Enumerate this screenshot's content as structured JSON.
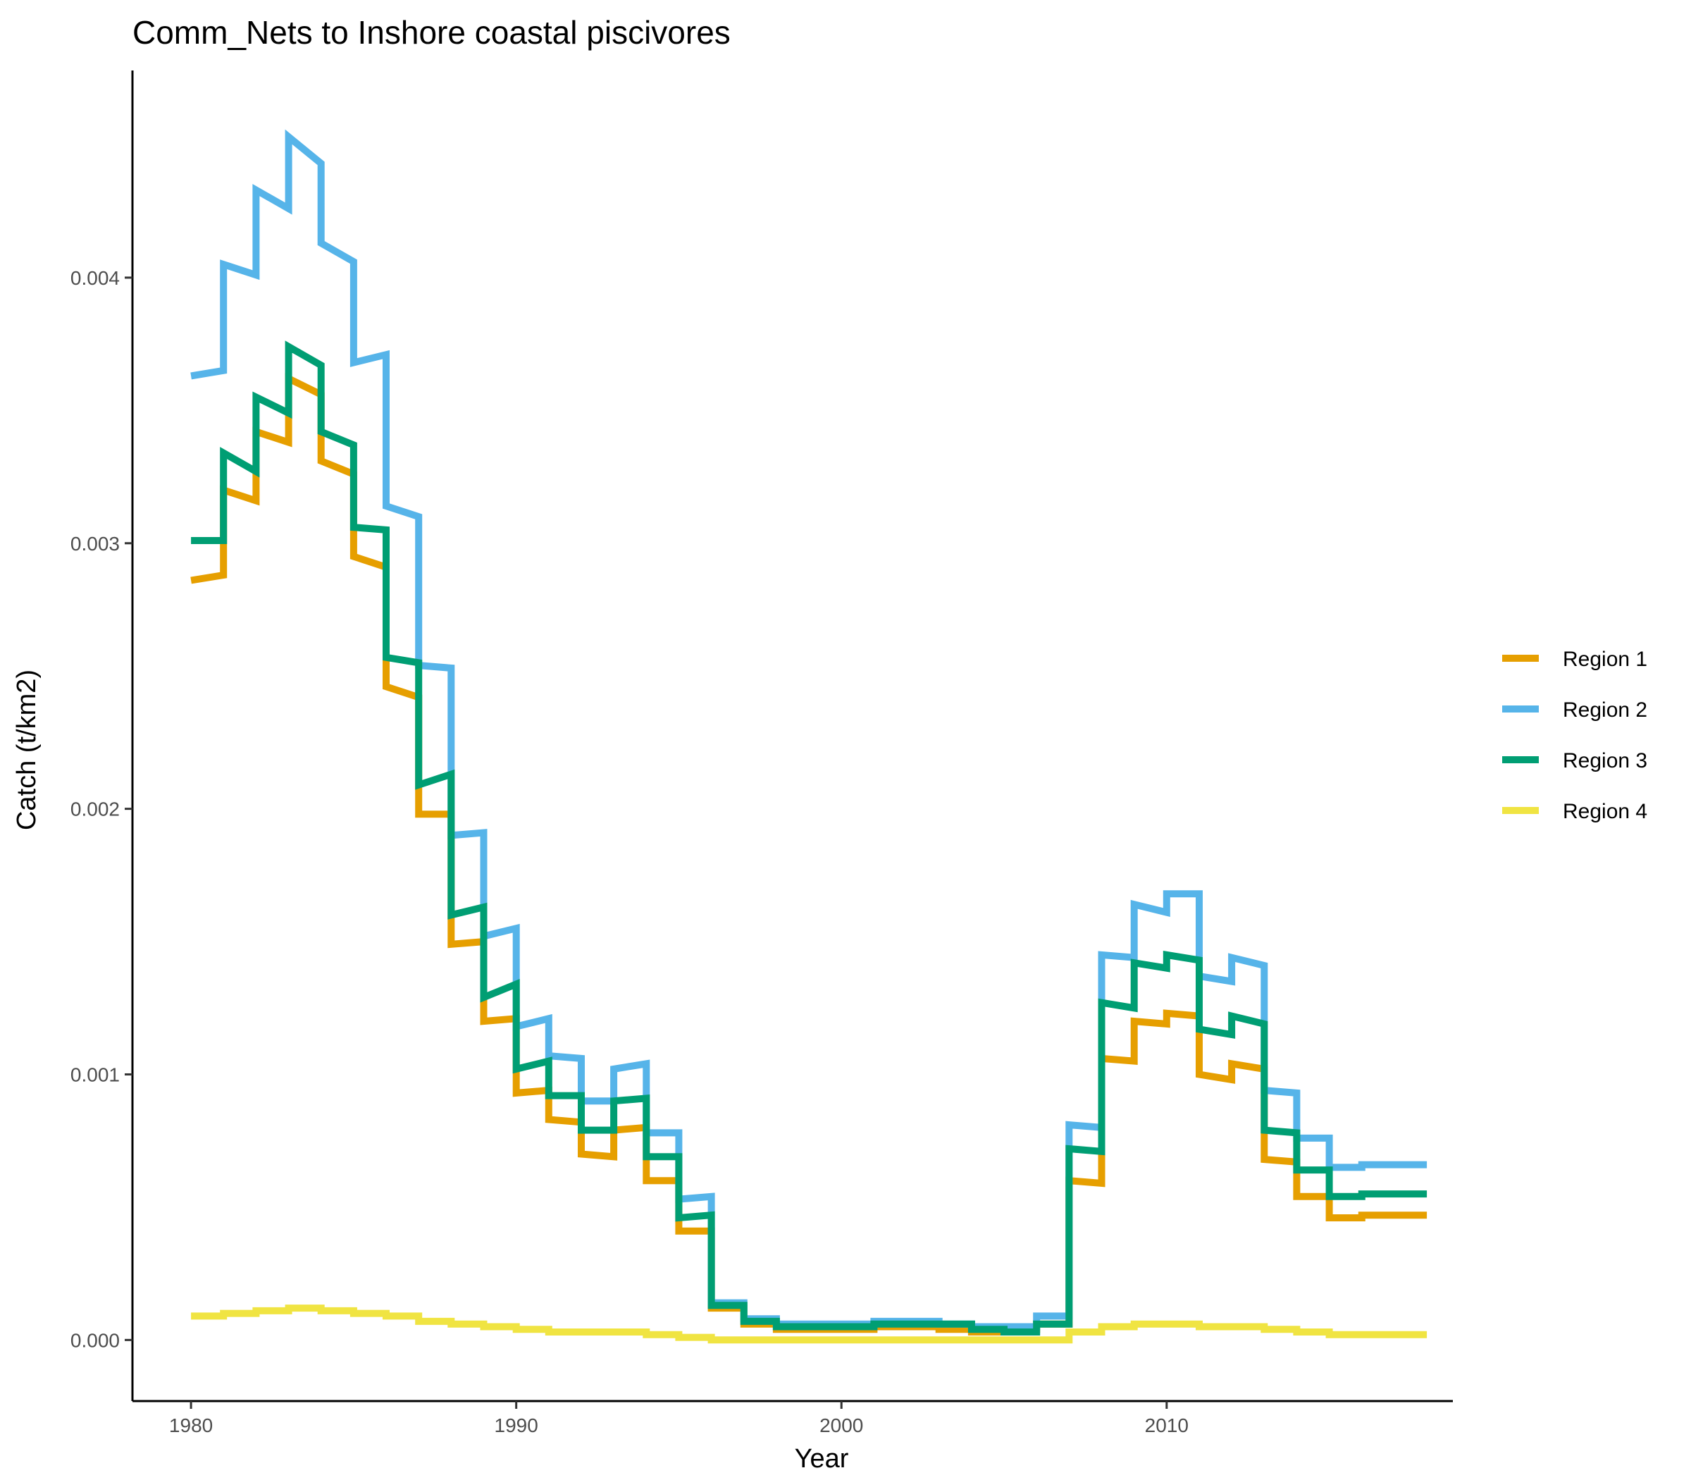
{
  "chart_data": {
    "type": "line",
    "title": "Comm_Nets to Inshore coastal piscivores",
    "xlabel": "Year",
    "ylabel": "Catch (t/km2)",
    "xlim": [
      1978.2,
      2018.8
    ],
    "ylim": [
      -0.00023,
      0.00478
    ],
    "x_ticks": [
      1980,
      1990,
      2000,
      2010
    ],
    "x_tick_labels": [
      "1980",
      "1990",
      "2000",
      "2010"
    ],
    "y_ticks": [
      0.0,
      0.001,
      0.002,
      0.003,
      0.004
    ],
    "y_tick_labels": [
      "0.000",
      "0.001",
      "0.002",
      "0.003",
      "0.004"
    ],
    "grid": false,
    "legend_position": "right",
    "x": [
      1980,
      1981,
      1982,
      1983,
      1984,
      1985,
      1986,
      1987,
      1988,
      1989,
      1990,
      1991,
      1992,
      1993,
      1994,
      1995,
      1996,
      1997,
      1998,
      1999,
      2000,
      2001,
      2002,
      2003,
      2004,
      2005,
      2006,
      2007,
      2008,
      2009,
      2010,
      2011,
      2012,
      2013,
      2014,
      2015,
      2016,
      2017
    ],
    "series": [
      {
        "name": "Region 1",
        "color": "#E69F00",
        "values": [
          [
            0.00286,
            0.00288
          ],
          [
            0.0032,
            0.00316
          ],
          [
            0.00342,
            0.00338
          ],
          [
            0.00362,
            0.00356
          ],
          [
            0.00331,
            0.00326
          ],
          [
            0.00295,
            0.00291
          ],
          [
            0.00246,
            0.00242
          ],
          [
            0.00198,
            0.00198
          ],
          [
            0.00149,
            0.0015
          ],
          [
            0.0012,
            0.00121
          ],
          [
            0.00093,
            0.00094
          ],
          [
            0.00083,
            0.00082
          ],
          [
            0.0007,
            0.00069
          ],
          [
            0.00079,
            0.0008
          ],
          [
            0.0006,
            0.0006
          ],
          [
            0.00041,
            0.00041
          ],
          [
            0.00012,
            0.00012
          ],
          [
            6e-05,
            6e-05
          ],
          [
            4e-05,
            4e-05
          ],
          [
            4e-05,
            4e-05
          ],
          [
            4e-05,
            4e-05
          ],
          [
            5e-05,
            5e-05
          ],
          [
            5e-05,
            5e-05
          ],
          [
            4e-05,
            4e-05
          ],
          [
            3e-05,
            3e-05
          ],
          [
            4e-05,
            4e-05
          ],
          [
            6e-05,
            6e-05
          ],
          [
            0.0006,
            0.00059
          ],
          [
            0.00106,
            0.00105
          ],
          [
            0.0012,
            0.00119
          ],
          [
            0.00123,
            0.00122
          ],
          [
            0.001,
            0.00098
          ],
          [
            0.00104,
            0.00102
          ],
          [
            0.00068,
            0.00067
          ],
          [
            0.00054,
            0.00054
          ],
          [
            0.00046,
            0.00046
          ],
          [
            0.00047,
            0.00047
          ],
          [
            0.00047,
            0.00047
          ]
        ]
      },
      {
        "name": "Region 2",
        "color": "#56B4E9",
        "values": [
          [
            0.00363,
            0.00365
          ],
          [
            0.00405,
            0.00401
          ],
          [
            0.00433,
            0.00426
          ],
          [
            0.00453,
            0.00443
          ],
          [
            0.00413,
            0.00406
          ],
          [
            0.00368,
            0.00371
          ],
          [
            0.00314,
            0.0031
          ],
          [
            0.00254,
            0.00253
          ],
          [
            0.0019,
            0.00191
          ],
          [
            0.00152,
            0.00155
          ],
          [
            0.00118,
            0.00121
          ],
          [
            0.00107,
            0.00106
          ],
          [
            0.0009,
            0.0009
          ],
          [
            0.00102,
            0.00104
          ],
          [
            0.00078,
            0.00078
          ],
          [
            0.00053,
            0.00054
          ],
          [
            0.00014,
            0.00014
          ],
          [
            8e-05,
            8e-05
          ],
          [
            6e-05,
            6e-05
          ],
          [
            6e-05,
            6e-05
          ],
          [
            6e-05,
            6e-05
          ],
          [
            7e-05,
            7e-05
          ],
          [
            7e-05,
            7e-05
          ],
          [
            6e-05,
            6e-05
          ],
          [
            5e-05,
            5e-05
          ],
          [
            5e-05,
            5e-05
          ],
          [
            9e-05,
            9e-05
          ],
          [
            0.00081,
            0.0008
          ],
          [
            0.00145,
            0.00144
          ],
          [
            0.00164,
            0.00161
          ],
          [
            0.00168,
            0.00168
          ],
          [
            0.00137,
            0.00135
          ],
          [
            0.00144,
            0.00141
          ],
          [
            0.00094,
            0.00093
          ],
          [
            0.00076,
            0.00076
          ],
          [
            0.00065,
            0.00065
          ],
          [
            0.00066,
            0.00066
          ],
          [
            0.00066,
            0.00066
          ]
        ]
      },
      {
        "name": "Region 3",
        "color": "#009E73",
        "values": [
          [
            0.00301,
            0.00301
          ],
          [
            0.00334,
            0.00327
          ],
          [
            0.00355,
            0.00349
          ],
          [
            0.00374,
            0.00367
          ],
          [
            0.00342,
            0.00337
          ],
          [
            0.00306,
            0.00305
          ],
          [
            0.00257,
            0.00255
          ],
          [
            0.00209,
            0.00213
          ],
          [
            0.0016,
            0.00163
          ],
          [
            0.00129,
            0.00134
          ],
          [
            0.00102,
            0.00105
          ],
          [
            0.00092,
            0.00092
          ],
          [
            0.00079,
            0.00079
          ],
          [
            0.0009,
            0.00091
          ],
          [
            0.00069,
            0.00069
          ],
          [
            0.00046,
            0.00047
          ],
          [
            0.00013,
            0.00013
          ],
          [
            7e-05,
            7e-05
          ],
          [
            5e-05,
            5e-05
          ],
          [
            5e-05,
            5e-05
          ],
          [
            5e-05,
            5e-05
          ],
          [
            6e-05,
            6e-05
          ],
          [
            6e-05,
            6e-05
          ],
          [
            6e-05,
            6e-05
          ],
          [
            4e-05,
            4e-05
          ],
          [
            3e-05,
            3e-05
          ],
          [
            6e-05,
            6e-05
          ],
          [
            0.00072,
            0.00071
          ],
          [
            0.00127,
            0.00125
          ],
          [
            0.00142,
            0.0014
          ],
          [
            0.00145,
            0.00143
          ],
          [
            0.00117,
            0.00115
          ],
          [
            0.00122,
            0.00119
          ],
          [
            0.00079,
            0.00078
          ],
          [
            0.00064,
            0.00064
          ],
          [
            0.00054,
            0.00054
          ],
          [
            0.00055,
            0.00055
          ],
          [
            0.00055,
            0.00055
          ]
        ]
      },
      {
        "name": "Region 4",
        "color": "#F0E442",
        "values": [
          [
            9e-05,
            9e-05
          ],
          [
            0.0001,
            0.0001
          ],
          [
            0.00011,
            0.00011
          ],
          [
            0.00012,
            0.00012
          ],
          [
            0.00011,
            0.00011
          ],
          [
            0.0001,
            0.0001
          ],
          [
            9e-05,
            9e-05
          ],
          [
            7e-05,
            7e-05
          ],
          [
            6e-05,
            6e-05
          ],
          [
            5e-05,
            5e-05
          ],
          [
            4e-05,
            4e-05
          ],
          [
            3e-05,
            3e-05
          ],
          [
            3e-05,
            3e-05
          ],
          [
            3e-05,
            3e-05
          ],
          [
            2e-05,
            2e-05
          ],
          [
            1e-05,
            1e-05
          ],
          [
            0.0,
            0.0
          ],
          [
            0.0,
            0.0
          ],
          [
            0.0,
            0.0
          ],
          [
            0.0,
            0.0
          ],
          [
            0.0,
            0.0
          ],
          [
            0.0,
            0.0
          ],
          [
            0.0,
            0.0
          ],
          [
            0.0,
            0.0
          ],
          [
            0.0,
            0.0
          ],
          [
            0.0,
            0.0
          ],
          [
            0.0,
            0.0
          ],
          [
            3e-05,
            3e-05
          ],
          [
            5e-05,
            5e-05
          ],
          [
            6e-05,
            6e-05
          ],
          [
            6e-05,
            6e-05
          ],
          [
            5e-05,
            5e-05
          ],
          [
            5e-05,
            5e-05
          ],
          [
            4e-05,
            4e-05
          ],
          [
            3e-05,
            3e-05
          ],
          [
            2e-05,
            2e-05
          ],
          [
            2e-05,
            2e-05
          ],
          [
            2e-05,
            2e-05
          ]
        ]
      }
    ]
  }
}
